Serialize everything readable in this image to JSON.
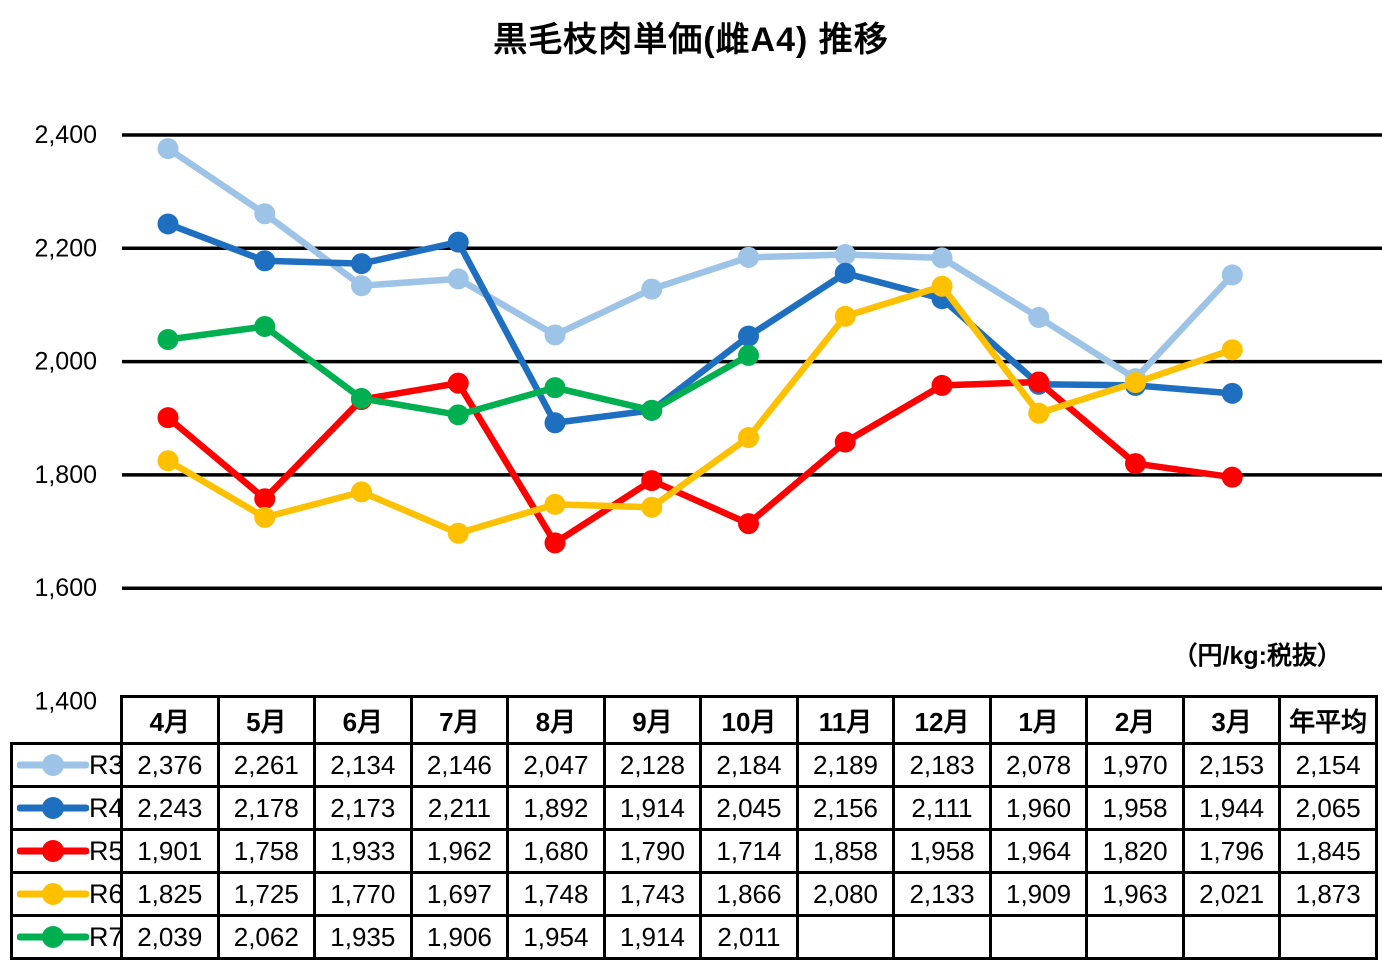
{
  "title": "黒毛枝肉単価(雌A4) 推移",
  "units_label": "（円/kg:税抜）",
  "chart_data": {
    "type": "line",
    "title": "黒毛枝肉単価(雌A4) 推移",
    "ylabel": "円/kg（税抜）",
    "categories": [
      "4月",
      "5月",
      "6月",
      "7月",
      "8月",
      "9月",
      "10月",
      "11月",
      "12月",
      "1月",
      "2月",
      "3月"
    ],
    "ylim": [
      1400,
      2400
    ],
    "grid": true,
    "gridline_values": [
      2400,
      2200,
      2000,
      1800,
      1600
    ],
    "yticks": [
      {
        "value": 2400,
        "label": "2,400"
      },
      {
        "value": 2200,
        "label": "2,200"
      },
      {
        "value": 2000,
        "label": "2,000"
      },
      {
        "value": 1800,
        "label": "1,800"
      },
      {
        "value": 1600,
        "label": "1,600"
      },
      {
        "value": 1400,
        "label": "1,400"
      }
    ],
    "legend_position": "table-left-column",
    "series": [
      {
        "name": "R3",
        "color": "#9DC3E6",
        "values": [
          2376,
          2261,
          2134,
          2146,
          2047,
          2128,
          2184,
          2189,
          2183,
          2078,
          1970,
          2153
        ]
      },
      {
        "name": "R4",
        "color": "#1F6FC0",
        "values": [
          2243,
          2178,
          2173,
          2211,
          1892,
          1914,
          2045,
          2156,
          2111,
          1960,
          1958,
          1944
        ]
      },
      {
        "name": "R5",
        "color": "#FF0000",
        "values": [
          1901,
          1758,
          1933,
          1962,
          1680,
          1790,
          1714,
          1858,
          1958,
          1964,
          1820,
          1796
        ]
      },
      {
        "name": "R6",
        "color": "#FFC000",
        "values": [
          1825,
          1725,
          1770,
          1697,
          1748,
          1743,
          1866,
          2080,
          2133,
          1909,
          1963,
          2021
        ]
      },
      {
        "name": "R7",
        "color": "#00B050",
        "values": [
          2039,
          2062,
          1935,
          1906,
          1954,
          1914,
          2011
        ]
      }
    ]
  },
  "table": {
    "columns": [
      "4月",
      "5月",
      "6月",
      "7月",
      "8月",
      "9月",
      "10月",
      "11月",
      "12月",
      "1月",
      "2月",
      "3月",
      "年平均"
    ],
    "rows": [
      {
        "name": "R3",
        "color": "#9DC3E6",
        "cells": [
          "2,376",
          "2,261",
          "2,134",
          "2,146",
          "2,047",
          "2,128",
          "2,184",
          "2,189",
          "2,183",
          "2,078",
          "1,970",
          "2,153",
          "2,154"
        ]
      },
      {
        "name": "R4",
        "color": "#1F6FC0",
        "cells": [
          "2,243",
          "2,178",
          "2,173",
          "2,211",
          "1,892",
          "1,914",
          "2,045",
          "2,156",
          "2,111",
          "1,960",
          "1,958",
          "1,944",
          "2,065"
        ]
      },
      {
        "name": "R5",
        "color": "#FF0000",
        "cells": [
          "1,901",
          "1,758",
          "1,933",
          "1,962",
          "1,680",
          "1,790",
          "1,714",
          "1,858",
          "1,958",
          "1,964",
          "1,820",
          "1,796",
          "1,845"
        ]
      },
      {
        "name": "R6",
        "color": "#FFC000",
        "cells": [
          "1,825",
          "1,725",
          "1,770",
          "1,697",
          "1,748",
          "1,743",
          "1,866",
          "2,080",
          "2,133",
          "1,909",
          "1,963",
          "2,021",
          "1,873"
        ]
      },
      {
        "name": "R7",
        "color": "#00B050",
        "cells": [
          "2,039",
          "2,062",
          "1,935",
          "1,906",
          "1,954",
          "1,914",
          "2,011",
          "",
          "",
          "",
          "",
          "",
          ""
        ]
      }
    ]
  }
}
